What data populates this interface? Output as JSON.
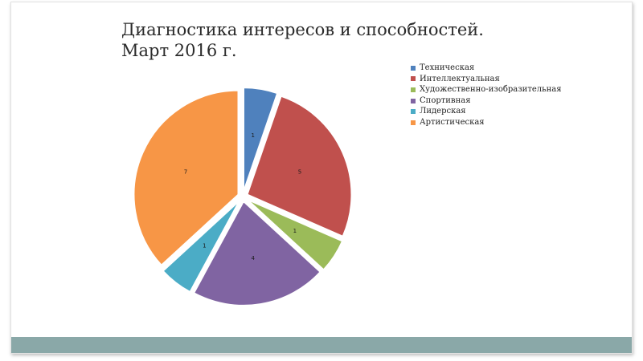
{
  "slide": {
    "title_line1": "Диагностика интересов и способностей.",
    "title_line2": "Март 2016 г."
  },
  "colors": {
    "bottom_bar": "#8aa8a8"
  },
  "chart_data": {
    "type": "pie",
    "title": "Диагностика интересов и способностей. Март 2016 г.",
    "legend_position": "right",
    "exploded": true,
    "slices": [
      {
        "label": "Техническая",
        "value": 1,
        "color": "#4f81bd"
      },
      {
        "label": "Интеллектуальная",
        "value": 5,
        "color": "#c0504d"
      },
      {
        "label": "Художественно-изобразительная",
        "value": 1,
        "color": "#9bbb59"
      },
      {
        "label": "Спортивная",
        "value": 4,
        "color": "#8064a2"
      },
      {
        "label": "Лидерская",
        "value": 1,
        "color": "#4bacc6"
      },
      {
        "label": "Артистическая",
        "value": 7,
        "color": "#f79646"
      }
    ]
  }
}
